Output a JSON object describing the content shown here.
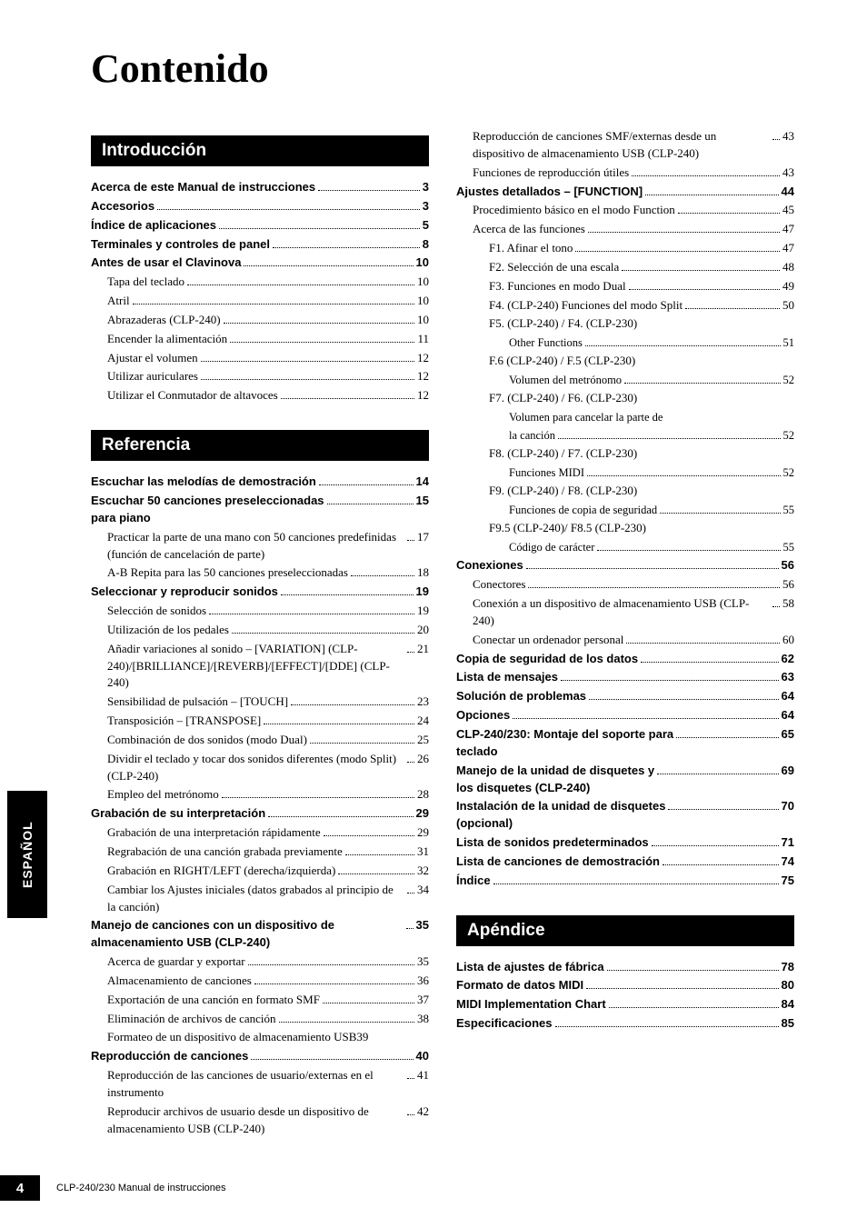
{
  "title": "Contenido",
  "side_tab": "ESPAÑOL",
  "footer": {
    "pagenum": "4",
    "text": "CLP-240/230 Manual de instrucciones"
  },
  "sections": [
    {
      "col": 0,
      "header": "Introducción",
      "entries": [
        {
          "lvl": 1,
          "bold": true,
          "label": "Acerca de este Manual de instrucciones",
          "pg": "3"
        },
        {
          "lvl": 1,
          "bold": true,
          "label": "Accesorios",
          "pg": "3"
        },
        {
          "lvl": 1,
          "bold": true,
          "label": "Índice de aplicaciones",
          "pg": "5"
        },
        {
          "lvl": 1,
          "bold": true,
          "label": "Terminales y controles de panel",
          "pg": "8"
        },
        {
          "lvl": 1,
          "bold": true,
          "label": "Antes de usar el Clavinova",
          "pg": "10"
        },
        {
          "lvl": 2,
          "label": "Tapa del teclado",
          "pg": "10"
        },
        {
          "lvl": 2,
          "label": "Atril",
          "pg": "10"
        },
        {
          "lvl": 2,
          "label": "Abrazaderas (CLP-240)",
          "pg": "10"
        },
        {
          "lvl": 2,
          "label": "Encender la alimentación",
          "pg": "11"
        },
        {
          "lvl": 2,
          "label": "Ajustar el volumen",
          "pg": "12"
        },
        {
          "lvl": 2,
          "label": "Utilizar auriculares",
          "pg": "12"
        },
        {
          "lvl": 2,
          "label": "Utilizar el Conmutador de altavoces",
          "pg": "12"
        }
      ]
    },
    {
      "col": 0,
      "header": "Referencia",
      "entries": [
        {
          "lvl": 1,
          "bold": true,
          "label": "Escuchar las melodías de demostración",
          "pg": "14"
        },
        {
          "lvl": 1,
          "bold": true,
          "label": "Escuchar 50 canciones preseleccionadas\npara piano",
          "pg": "15"
        },
        {
          "lvl": 2,
          "label": "Practicar la parte de una mano con 50 canciones predefinidas (función de cancelación de parte)",
          "pg": "17"
        },
        {
          "lvl": 2,
          "label": "A-B Repita para las 50 canciones preseleccionadas",
          "pg": "18",
          "tight": true
        },
        {
          "lvl": 1,
          "bold": true,
          "label": "Seleccionar y reproducir sonidos",
          "pg": "19"
        },
        {
          "lvl": 2,
          "label": "Selección de sonidos",
          "pg": "19"
        },
        {
          "lvl": 2,
          "label": "Utilización de los pedales",
          "pg": "20"
        },
        {
          "lvl": 2,
          "label": "Añadir variaciones al sonido – [VARIATION] (CLP-240)/[BRILLIANCE]/[REVERB]/[EFFECT]/[DDE] (CLP-240)",
          "pg": "21"
        },
        {
          "lvl": 2,
          "label": "Sensibilidad de pulsación – [TOUCH]",
          "pg": "23"
        },
        {
          "lvl": 2,
          "label": "Transposición – [TRANSPOSE]",
          "pg": "24"
        },
        {
          "lvl": 2,
          "label": "Combinación de dos sonidos (modo Dual)",
          "pg": "25"
        },
        {
          "lvl": 2,
          "label": "Dividir el teclado y tocar dos sonidos diferentes (modo Split) (CLP-240)",
          "pg": "26"
        },
        {
          "lvl": 2,
          "label": "Empleo del metrónomo",
          "pg": "28"
        },
        {
          "lvl": 1,
          "bold": true,
          "label": "Grabación de su interpretación",
          "pg": "29"
        },
        {
          "lvl": 2,
          "label": "Grabación de una interpretación rápidamente",
          "pg": "29"
        },
        {
          "lvl": 2,
          "label": "Regrabación de una canción grabada previamente",
          "pg": "31",
          "tight": true
        },
        {
          "lvl": 2,
          "label": "Grabación en RIGHT/LEFT (derecha/izquierda)",
          "pg": "32"
        },
        {
          "lvl": 2,
          "label": "Cambiar los Ajustes iniciales (datos grabados al principio de la canción)",
          "pg": "34"
        },
        {
          "lvl": 1,
          "bold": true,
          "label": "Manejo de canciones con un dispositivo de almacenamiento USB (CLP-240)",
          "pg": "35"
        },
        {
          "lvl": 2,
          "label": "Acerca de guardar y exportar",
          "pg": "35"
        },
        {
          "lvl": 2,
          "label": "Almacenamiento de canciones",
          "pg": "36"
        },
        {
          "lvl": 2,
          "label": "Exportación de una canción en formato SMF",
          "pg": "37"
        },
        {
          "lvl": 2,
          "label": "Eliminación de archivos de canción",
          "pg": "38"
        },
        {
          "lvl": 2,
          "label": "Formateo de un dispositivo de almacenamiento USB39",
          "pg": ""
        },
        {
          "lvl": 1,
          "bold": true,
          "label": "Reproducción de canciones",
          "pg": "40"
        },
        {
          "lvl": 2,
          "label": "Reproducción de las canciones de usuario/externas en el instrumento",
          "pg": "41"
        },
        {
          "lvl": 2,
          "label": "Reproducir archivos de usuario desde un dispositivo de almacenamiento USB (CLP-240)",
          "pg": "42"
        }
      ]
    },
    {
      "col": 1,
      "header": null,
      "entries": [
        {
          "lvl": 2,
          "label": "Reproducción de canciones SMF/externas desde un dispositivo de almacenamiento USB (CLP-240)",
          "pg": "43"
        },
        {
          "lvl": 2,
          "label": "Funciones de reproducción útiles",
          "pg": "43"
        },
        {
          "lvl": 1,
          "bold": true,
          "label": "Ajustes detallados – [FUNCTION]",
          "pg": "44"
        },
        {
          "lvl": 2,
          "label": "Procedimiento básico en el modo Function",
          "pg": "45"
        },
        {
          "lvl": 2,
          "label": "Acerca de las funciones",
          "pg": "47"
        },
        {
          "lvl": 3,
          "label": "F1. Afinar el tono",
          "pg": "47"
        },
        {
          "lvl": 3,
          "label": "F2. Selección de una escala",
          "pg": "48"
        },
        {
          "lvl": 3,
          "label": "F3. Funciones en modo Dual",
          "pg": "49"
        },
        {
          "lvl": 3,
          "label": "F4. (CLP-240) Funciones del modo Split",
          "pg": "50"
        },
        {
          "lvl": 3,
          "label": "F5. (CLP-240) / F4. (CLP-230)",
          "pg": ""
        },
        {
          "lvl": 4,
          "label": "Other Functions",
          "pg": "51"
        },
        {
          "lvl": 3,
          "label": "F.6 (CLP-240) / F.5 (CLP-230)",
          "pg": ""
        },
        {
          "lvl": 4,
          "label": "Volumen del metrónomo",
          "pg": "52"
        },
        {
          "lvl": 3,
          "label": "F7. (CLP-240) / F6. (CLP-230)",
          "pg": ""
        },
        {
          "lvl": 4,
          "label": "Volumen para cancelar la parte de",
          "pg": ""
        },
        {
          "lvl": 4,
          "label": "la canción",
          "pg": "52"
        },
        {
          "lvl": 3,
          "label": "F8. (CLP-240) / F7. (CLP-230)",
          "pg": ""
        },
        {
          "lvl": 4,
          "label": "Funciones MIDI",
          "pg": "52"
        },
        {
          "lvl": 3,
          "label": "F9. (CLP-240) / F8. (CLP-230)",
          "pg": ""
        },
        {
          "lvl": 4,
          "label": "Funciones de copia de seguridad",
          "pg": "55"
        },
        {
          "lvl": 3,
          "label": "F9.5 (CLP-240)/ F8.5 (CLP-230)",
          "pg": ""
        },
        {
          "lvl": 4,
          "label": "Código de carácter",
          "pg": "55"
        },
        {
          "lvl": 1,
          "bold": true,
          "label": "Conexiones",
          "pg": "56"
        },
        {
          "lvl": 2,
          "label": "Conectores",
          "pg": "56"
        },
        {
          "lvl": 2,
          "label": "Conexión a un dispositivo de almacenamiento USB (CLP-240)",
          "pg": "58"
        },
        {
          "lvl": 2,
          "label": "Conectar un ordenador personal",
          "pg": "60"
        },
        {
          "lvl": 1,
          "bold": true,
          "label": "Copia de seguridad de los datos",
          "pg": "62"
        },
        {
          "lvl": 1,
          "bold": true,
          "label": "Lista de mensajes",
          "pg": "63"
        },
        {
          "lvl": 1,
          "bold": true,
          "label": "Solución de problemas",
          "pg": "64"
        },
        {
          "lvl": 1,
          "bold": true,
          "label": "Opciones",
          "pg": "64"
        },
        {
          "lvl": 1,
          "bold": true,
          "label": "CLP-240/230: Montaje del soporte para\nteclado",
          "pg": "65"
        },
        {
          "lvl": 1,
          "bold": true,
          "label": "Manejo de la unidad de disquetes y\nlos disquetes (CLP-240)",
          "pg": "69"
        },
        {
          "lvl": 1,
          "bold": true,
          "label": "Instalación de la unidad de disquetes\n(opcional)",
          "pg": "70"
        },
        {
          "lvl": 1,
          "bold": true,
          "label": "Lista de sonidos predeterminados",
          "pg": "71"
        },
        {
          "lvl": 1,
          "bold": true,
          "label": "Lista de canciones de demostración",
          "pg": "74"
        },
        {
          "lvl": 1,
          "bold": true,
          "label": "Índice",
          "pg": "75"
        }
      ]
    },
    {
      "col": 1,
      "header": "Apéndice",
      "entries": [
        {
          "lvl": 1,
          "bold": true,
          "label": "Lista de ajustes de fábrica",
          "pg": "78"
        },
        {
          "lvl": 1,
          "bold": true,
          "label": "Formato de datos MIDI",
          "pg": "80"
        },
        {
          "lvl": 1,
          "bold": true,
          "label": "MIDI Implementation Chart",
          "pg": "84"
        },
        {
          "lvl": 1,
          "bold": true,
          "label": "Especificaciones",
          "pg": "85"
        }
      ]
    }
  ]
}
